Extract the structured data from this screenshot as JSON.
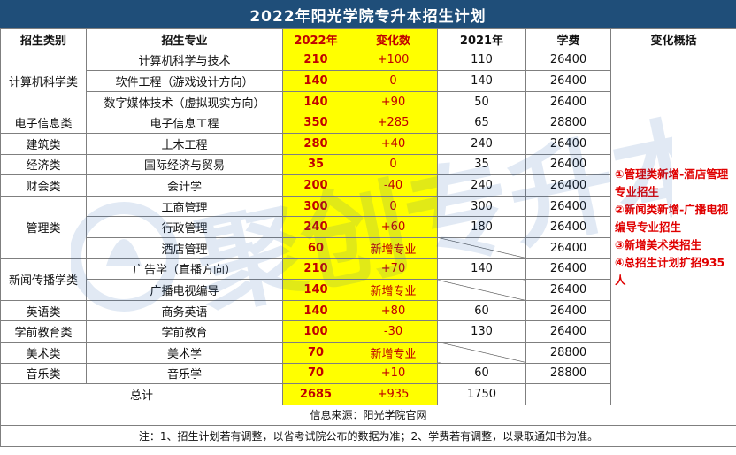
{
  "title": "2022年阳光学院专升本招生计划",
  "headers": [
    "招生类别",
    "招生专业",
    "2022年",
    "变化数",
    "2021年",
    "学费",
    "变化概括"
  ],
  "groups": [
    {
      "category": "计算机科学类",
      "rows": [
        {
          "major": "计算机科学与技术",
          "y2022": "210",
          "change": "+100",
          "y2021": "110",
          "fee": "26400"
        },
        {
          "major": "软件工程（游戏设计方向）",
          "y2022": "140",
          "change": "0",
          "y2021": "140",
          "fee": "26400"
        },
        {
          "major": "数字媒体技术（虚拟现实方向）",
          "y2022": "140",
          "change": "+90",
          "y2021": "50",
          "fee": "26400"
        }
      ]
    },
    {
      "category": "电子信息类",
      "rows": [
        {
          "major": "电子信息工程",
          "y2022": "350",
          "change": "+285",
          "y2021": "65",
          "fee": "28800"
        }
      ]
    },
    {
      "category": "建筑类",
      "rows": [
        {
          "major": "土木工程",
          "y2022": "280",
          "change": "+40",
          "y2021": "240",
          "fee": "26400"
        }
      ]
    },
    {
      "category": "经济类",
      "rows": [
        {
          "major": "国际经济与贸易",
          "y2022": "35",
          "change": "0",
          "y2021": "35",
          "fee": "26400"
        }
      ]
    },
    {
      "category": "财会类",
      "rows": [
        {
          "major": "会计学",
          "y2022": "200",
          "change": "-40",
          "y2021": "240",
          "fee": "26400"
        }
      ]
    },
    {
      "category": "管理类",
      "rows": [
        {
          "major": "工商管理",
          "y2022": "300",
          "change": "0",
          "y2021": "300",
          "fee": "26400"
        },
        {
          "major": "行政管理",
          "y2022": "240",
          "change": "+60",
          "y2021": "180",
          "fee": "26400"
        },
        {
          "major": "酒店管理",
          "y2022": "60",
          "change": "新增专业",
          "y2021": "",
          "fee": "26400"
        }
      ]
    },
    {
      "category": "新闻传播学类",
      "rows": [
        {
          "major": "广告学（直播方向）",
          "y2022": "210",
          "change": "+70",
          "y2021": "140",
          "fee": "26400"
        },
        {
          "major": "广播电视编导",
          "y2022": "140",
          "change": "新增专业",
          "y2021": "",
          "fee": "26400"
        }
      ]
    },
    {
      "category": "英语类",
      "rows": [
        {
          "major": "商务英语",
          "y2022": "140",
          "change": "+80",
          "y2021": "60",
          "fee": "26400"
        }
      ]
    },
    {
      "category": "学前教育类",
      "rows": [
        {
          "major": "学前教育",
          "y2022": "100",
          "change": "-30",
          "y2021": "130",
          "fee": "26400"
        }
      ]
    },
    {
      "category": "美术类",
      "rows": [
        {
          "major": "美术学",
          "y2022": "70",
          "change": "新增专业",
          "y2021": "",
          "fee": "28800"
        }
      ]
    },
    {
      "category": "音乐类",
      "rows": [
        {
          "major": "音乐学",
          "y2022": "70",
          "change": "+10",
          "y2021": "60",
          "fee": "28800"
        }
      ]
    }
  ],
  "total": {
    "label": "总计",
    "y2022": "2685",
    "change": "+935",
    "y2021": "1750"
  },
  "summary": [
    "①管理类新增-酒店管理专业招生",
    "②新闻类新增-广播电视编导专业招生",
    "③新增美术类招生",
    "④总招生计划扩招935人"
  ],
  "source": "信息来源：阳光学院官网",
  "note": "注：1、招生计划若有调整，以省考试院公布的数据为准；2、学费若有调整，以录取通知书为准。",
  "watermark_text": "聚创专升本",
  "colors": {
    "title_bg": "#1f4e79",
    "highlight": "#ffff00",
    "red": "#c00000",
    "summary_red": "#e00000"
  }
}
